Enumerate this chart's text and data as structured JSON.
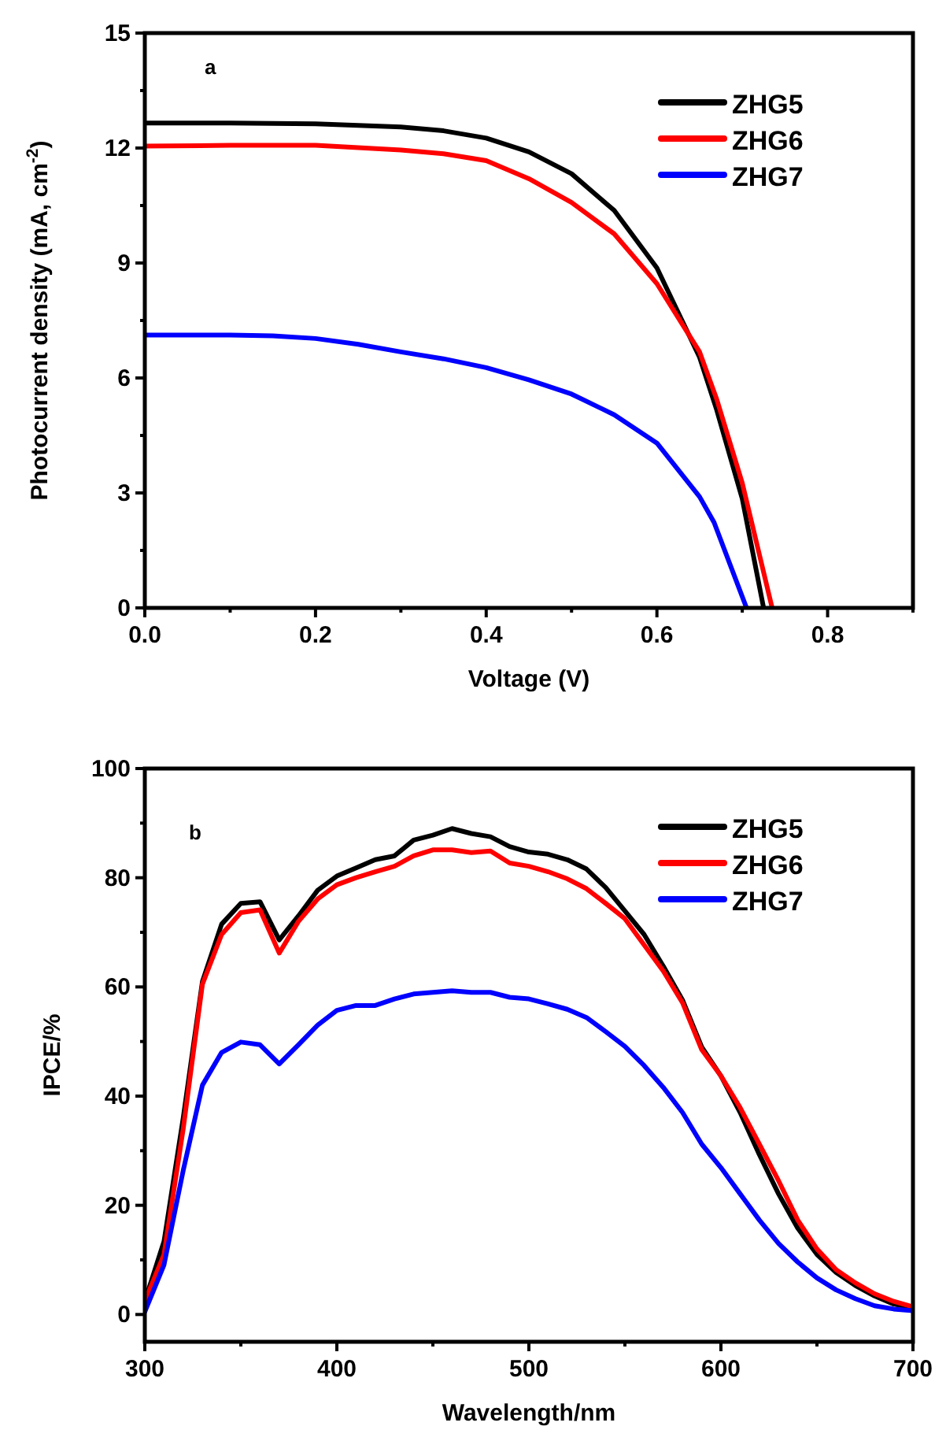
{
  "chart_data": [
    {
      "type": "line",
      "xlabel": "Voltage (V)",
      "ylabel": "Photocurrent density (mA, cm$^{-2}$)",
      "annotations": [
        "a"
      ],
      "xlim": [
        0,
        0.9
      ],
      "xticks": [
        {
          "value": 0,
          "label": "0.0"
        },
        {
          "value": 0.1,
          "label": null
        },
        0.2,
        {
          "value": 0.3,
          "label": null
        },
        0.4,
        {
          "value": 0.5,
          "label": null
        },
        0.6,
        {
          "value": 0.7,
          "label": null
        },
        0.8,
        {
          "value": 0.9,
          "label": null
        }
      ],
      "ylim": [
        0,
        15
      ],
      "yticks": [
        0,
        {
          "value": 1.5,
          "label": null
        },
        3,
        {
          "value": 4.5,
          "label": null
        },
        6,
        {
          "value": 7.5,
          "label": null
        },
        9,
        {
          "value": 10.5,
          "label": null
        },
        12,
        {
          "value": 13.5,
          "label": null
        },
        15
      ],
      "legend": "top right",
      "grid": false,
      "line_style": "solid",
      "marker": "none",
      "series": [
        {
          "name": "ZHG5",
          "color": "#000000",
          "x": [
            0,
            0.1,
            0.2,
            0.3,
            0.35,
            0.4,
            0.45,
            0.5,
            0.55,
            0.6,
            0.65,
            0.67,
            0.7,
            0.725
          ],
          "values": [
            12.65,
            12.65,
            12.63,
            12.55,
            12.45,
            12.26,
            11.9,
            11.33,
            10.37,
            8.87,
            6.54,
            5.17,
            2.85,
            0
          ]
        },
        {
          "name": "ZHG6",
          "color": "#ff0000",
          "x": [
            0,
            0.1,
            0.2,
            0.3,
            0.35,
            0.4,
            0.45,
            0.5,
            0.55,
            0.6,
            0.65,
            0.67,
            0.7,
            0.735
          ],
          "values": [
            12.05,
            12.07,
            12.07,
            11.95,
            11.85,
            11.67,
            11.2,
            10.58,
            9.76,
            8.46,
            6.68,
            5.45,
            3.26,
            0
          ]
        },
        {
          "name": "ZHG7",
          "color": "#0000ff",
          "x": [
            0,
            0.1,
            0.15,
            0.2,
            0.25,
            0.3,
            0.35,
            0.4,
            0.45,
            0.5,
            0.55,
            0.6,
            0.65,
            0.667,
            0.705
          ],
          "values": [
            7.12,
            7.12,
            7.1,
            7.03,
            6.88,
            6.68,
            6.5,
            6.27,
            5.95,
            5.58,
            5.04,
            4.3,
            2.9,
            2.23,
            0
          ]
        }
      ]
    },
    {
      "type": "line",
      "xlabel": "Wavelength/nm",
      "ylabel": "IPCE/%",
      "annotations": [
        "b"
      ],
      "xlim": [
        300,
        700
      ],
      "xticks": [
        300,
        {
          "value": 350,
          "label": null
        },
        400,
        {
          "value": 450,
          "label": null
        },
        500,
        {
          "value": 550,
          "label": null
        },
        600,
        {
          "value": 650,
          "label": null
        },
        700
      ],
      "ylim": [
        -5,
        100
      ],
      "yticks": [
        0,
        {
          "value": 10,
          "label": null
        },
        20,
        {
          "value": 30,
          "label": null
        },
        40,
        {
          "value": 50,
          "label": null
        },
        60,
        {
          "value": 70,
          "label": null
        },
        80,
        {
          "value": 90,
          "label": null
        },
        100
      ],
      "legend": "top right",
      "grid": false,
      "line_style": "solid",
      "marker": "none",
      "x": [
        300,
        310,
        320,
        330,
        340,
        350,
        360,
        370,
        380,
        390,
        400,
        410,
        420,
        430,
        440,
        450,
        460,
        470,
        480,
        490,
        500,
        510,
        520,
        530,
        540,
        550,
        560,
        570,
        580,
        590,
        600,
        610,
        620,
        630,
        640,
        650,
        660,
        670,
        680,
        690,
        700
      ],
      "series": [
        {
          "name": "ZHG5",
          "color": "#000000",
          "values": [
            2.4,
            13.4,
            36,
            61,
            71.5,
            75.3,
            75.6,
            68.6,
            73,
            77.7,
            80.3,
            81.8,
            83.3,
            84,
            86.9,
            87.8,
            89,
            88.1,
            87.5,
            85.7,
            84.7,
            84.3,
            83.3,
            81.6,
            78.2,
            73.9,
            69.6,
            63.8,
            57.6,
            49,
            43.7,
            37,
            29.3,
            22.1,
            15.8,
            11,
            7.7,
            5.3,
            3.4,
            1.9,
            1.2
          ]
        },
        {
          "name": "ZHG6",
          "color": "#ff0000",
          "values": [
            2.4,
            11,
            34,
            60.5,
            69.6,
            73.6,
            74.1,
            66.2,
            72,
            76.1,
            78.7,
            80,
            81.1,
            82.1,
            84,
            85.1,
            85.1,
            84.6,
            84.9,
            82.7,
            82.1,
            81.1,
            79.8,
            78,
            75.3,
            72.5,
            67.7,
            62.9,
            57.1,
            48.5,
            43.7,
            37.9,
            31.2,
            24.5,
            17.3,
            12,
            8.2,
            5.8,
            3.8,
            2.4,
            1.4
          ]
        },
        {
          "name": "ZHG7",
          "color": "#0000ff",
          "values": [
            0.5,
            9.1,
            26.4,
            42,
            48,
            49.9,
            49.4,
            45.9,
            49.4,
            53,
            55.7,
            56.6,
            56.6,
            57.8,
            58.7,
            59,
            59.3,
            59,
            59,
            58.1,
            57.8,
            56.9,
            55.9,
            54.4,
            51.8,
            49.1,
            45.6,
            41.6,
            37,
            31.2,
            26.9,
            22.1,
            17.3,
            13,
            9.6,
            6.7,
            4.5,
            2.9,
            1.6,
            1,
            0.7
          ]
        }
      ]
    }
  ]
}
